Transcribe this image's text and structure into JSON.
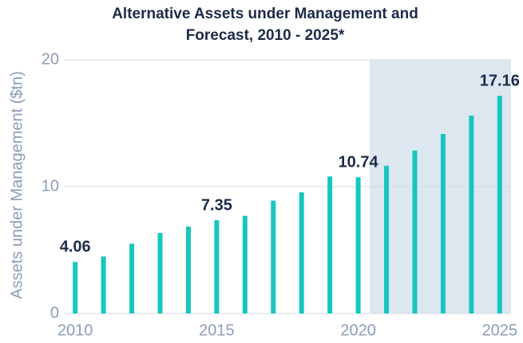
{
  "chart_data": {
    "type": "bar",
    "title": [
      "Alternative Assets under Management and",
      "Forecast, 2010 - 2025*"
    ],
    "y_label": "Assets under Management ($tn)",
    "x": [
      2010,
      2011,
      2012,
      2013,
      2014,
      2015,
      2016,
      2017,
      2018,
      2019,
      2020,
      2021,
      2022,
      2023,
      2024,
      2025
    ],
    "values": [
      4.06,
      4.5,
      5.5,
      6.35,
      6.85,
      7.35,
      7.7,
      8.9,
      9.55,
      10.8,
      10.74,
      11.65,
      12.85,
      14.15,
      15.6,
      17.16
    ],
    "value_labels": [
      "4.06",
      null,
      null,
      null,
      null,
      "7.35",
      null,
      null,
      null,
      null,
      "10.74",
      null,
      null,
      null,
      null,
      "17.16"
    ],
    "color": "#17c6c0",
    "xlim": [
      2009.6,
      2025.4
    ],
    "xticks": [
      2010,
      2015,
      2020,
      2025
    ],
    "ylim": [
      0,
      20
    ],
    "yticks": [
      0,
      10,
      20
    ],
    "grid": true,
    "shade_xlim": [
      2020.4,
      2025.4
    ],
    "shade_color": "#dde7f0"
  }
}
